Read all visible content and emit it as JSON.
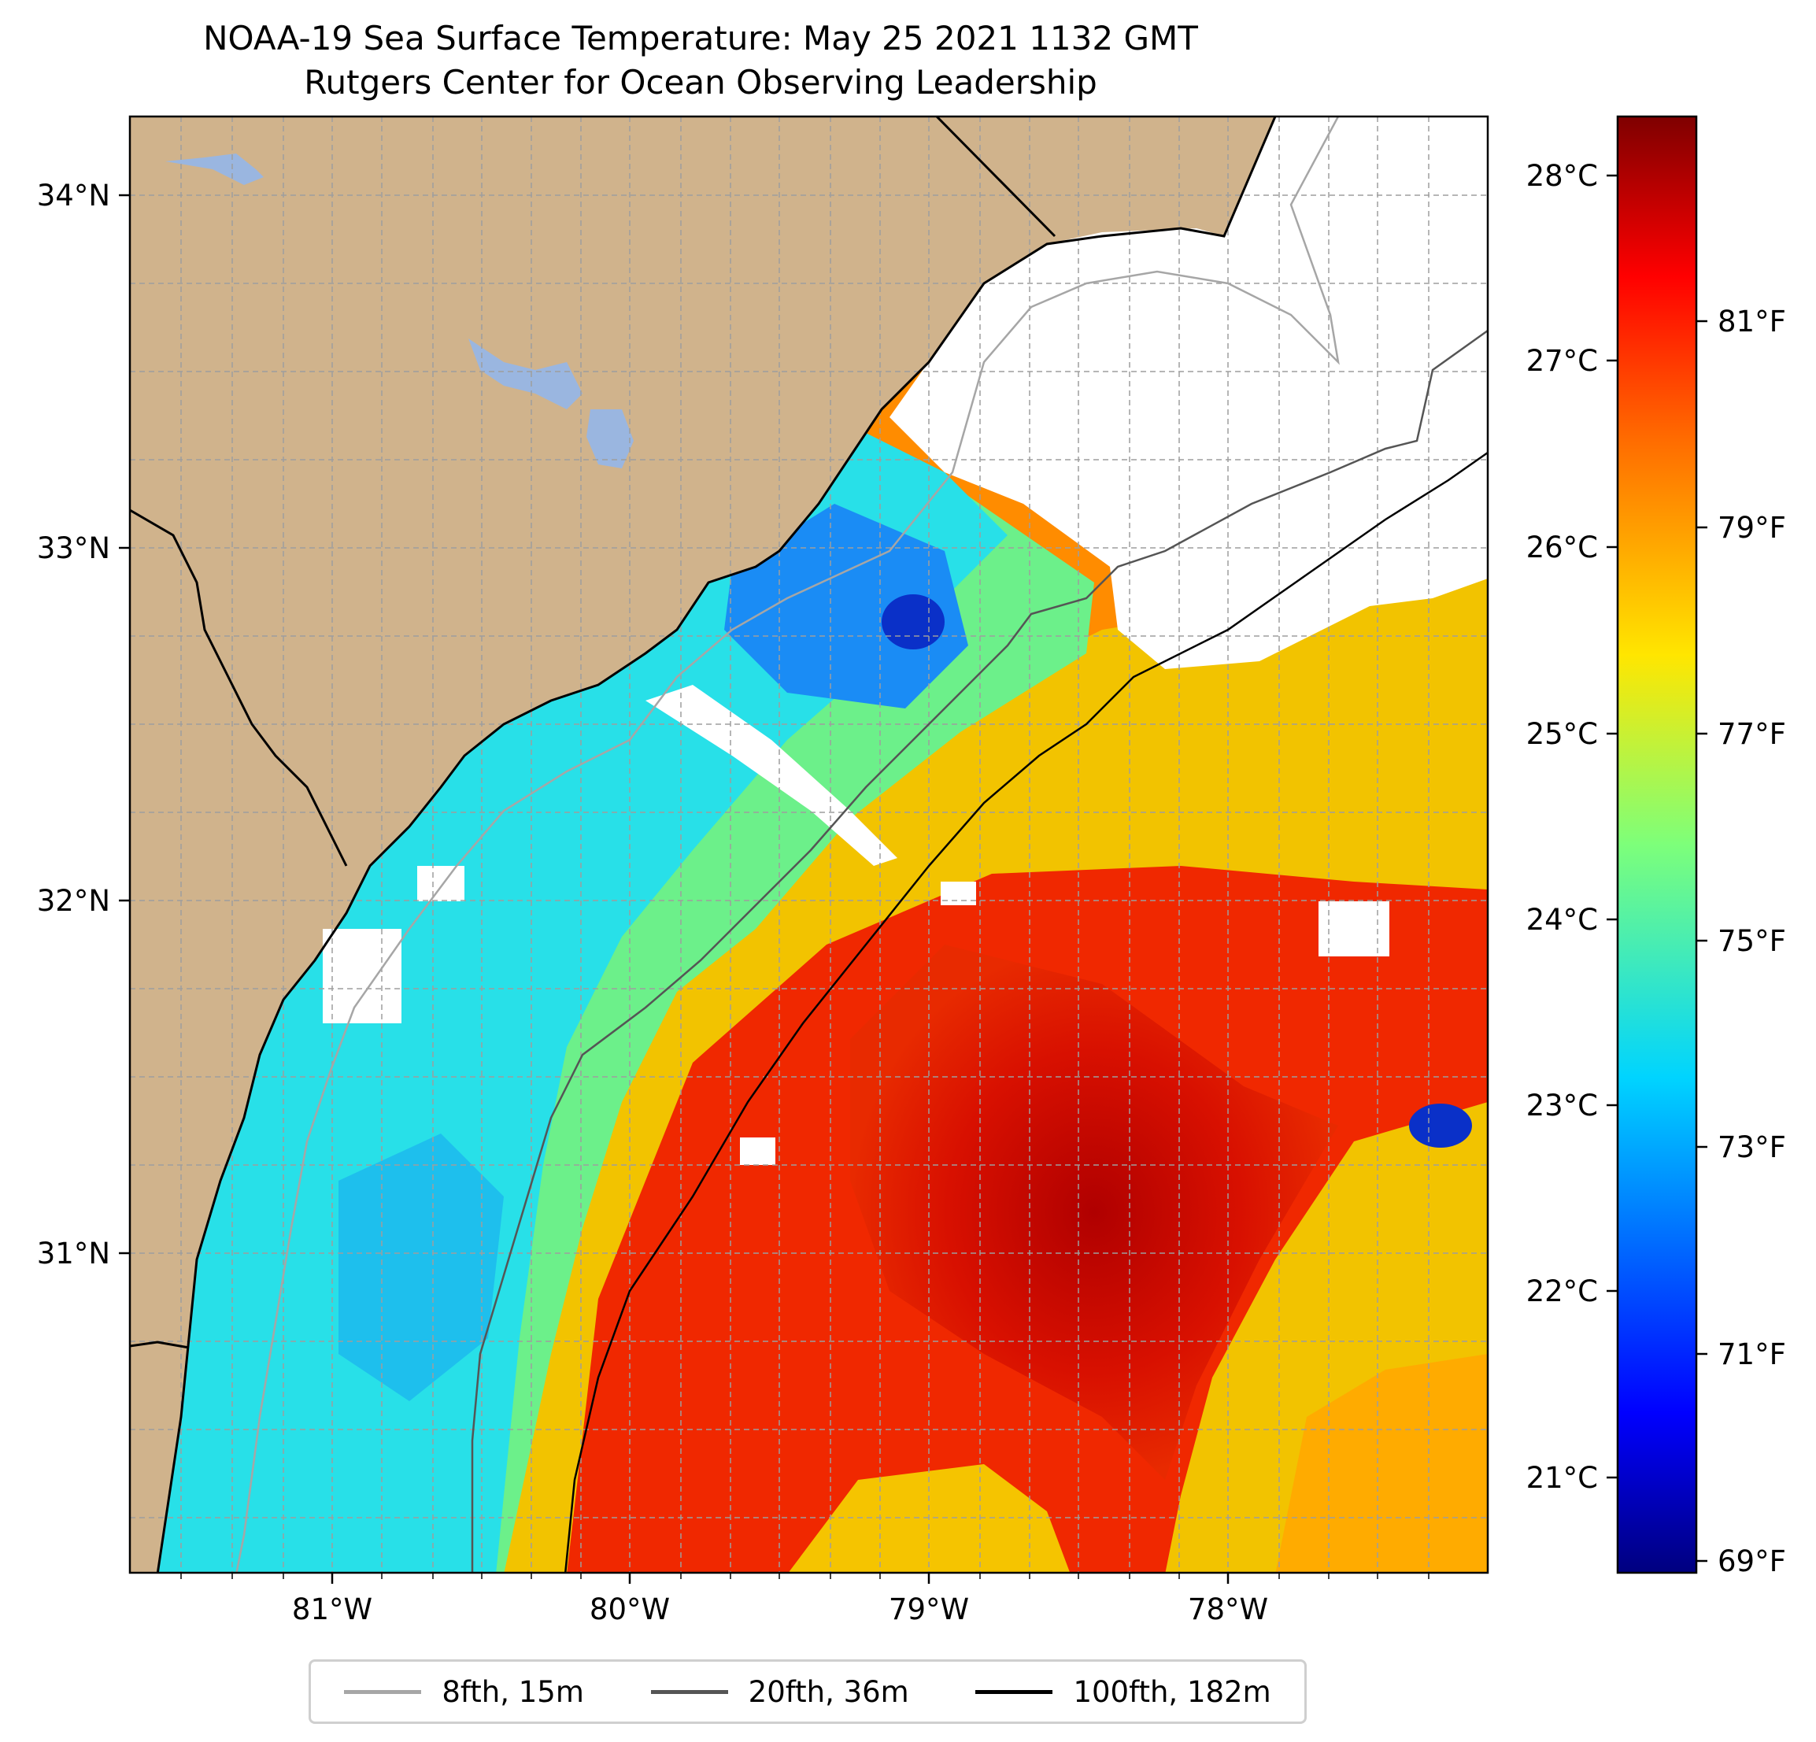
{
  "title": "NOAA-19 Sea Surface Temperature: May 25 2021 1132 GMT",
  "subtitle": "Rutgers Center for Ocean Observing Leadership",
  "x_ticks": [
    "81°W",
    "80°W",
    "79°W",
    "78°W"
  ],
  "y_ticks": [
    "34°N",
    "33°N",
    "32°N",
    "31°N"
  ],
  "colorbar": {
    "celsius": [
      "28°C",
      "27°C",
      "26°C",
      "25°C",
      "24°C",
      "23°C",
      "22°C",
      "21°C"
    ],
    "fahrenheit": [
      "81°F",
      "79°F",
      "77°F",
      "75°F",
      "73°F",
      "71°F",
      "69°F"
    ]
  },
  "legend": [
    {
      "label": "8fth, 15m",
      "color": "#a6a6a6"
    },
    {
      "label": "20fth, 36m",
      "color": "#555555"
    },
    {
      "label": "100fth, 182m",
      "color": "#000000"
    }
  ],
  "colors": {
    "land": "#d0b38c",
    "lake": "#9ab6e0",
    "no_data": "#ffffff"
  }
}
